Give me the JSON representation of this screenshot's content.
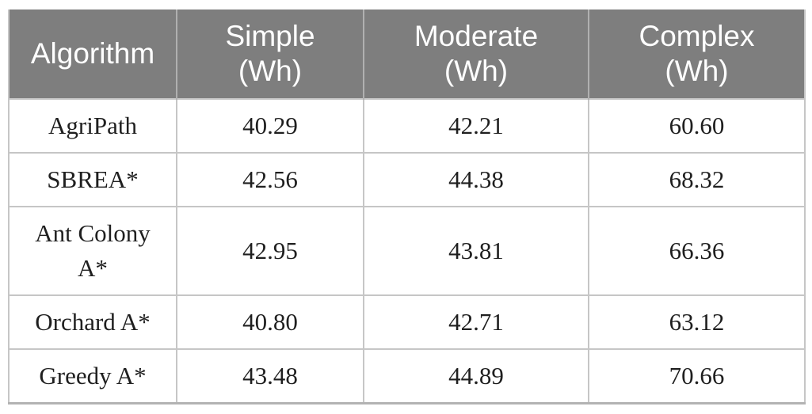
{
  "chart_data": {
    "type": "table",
    "columns": [
      {
        "label": "Algorithm",
        "unit": ""
      },
      {
        "label": "Simple",
        "unit": "(Wh)"
      },
      {
        "label": "Moderate",
        "unit": "(Wh)"
      },
      {
        "label": "Complex",
        "unit": "(Wh)"
      }
    ],
    "rows": [
      {
        "algorithm": "AgriPath",
        "values": [
          "40.29",
          "42.21",
          "60.60"
        ]
      },
      {
        "algorithm": "SBREA*",
        "values": [
          "42.56",
          "44.38",
          "68.32"
        ]
      },
      {
        "algorithm": "Ant Colony A*",
        "values": [
          "42.95",
          "43.81",
          "66.36"
        ]
      },
      {
        "algorithm": "Orchard A*",
        "values": [
          "40.80",
          "42.71",
          "63.12"
        ]
      },
      {
        "algorithm": "Greedy A*",
        "values": [
          "43.48",
          "44.89",
          "70.66"
        ]
      }
    ],
    "colors": {
      "header_bg": "#7e7e7e",
      "header_text": "#ffffff",
      "body_text": "#1f1f1f",
      "grid_border": "#c6c6c6",
      "bottom_border": "#b3b3b3"
    },
    "layout": {
      "header_two_line_units": true,
      "value_alignment": "center"
    }
  }
}
